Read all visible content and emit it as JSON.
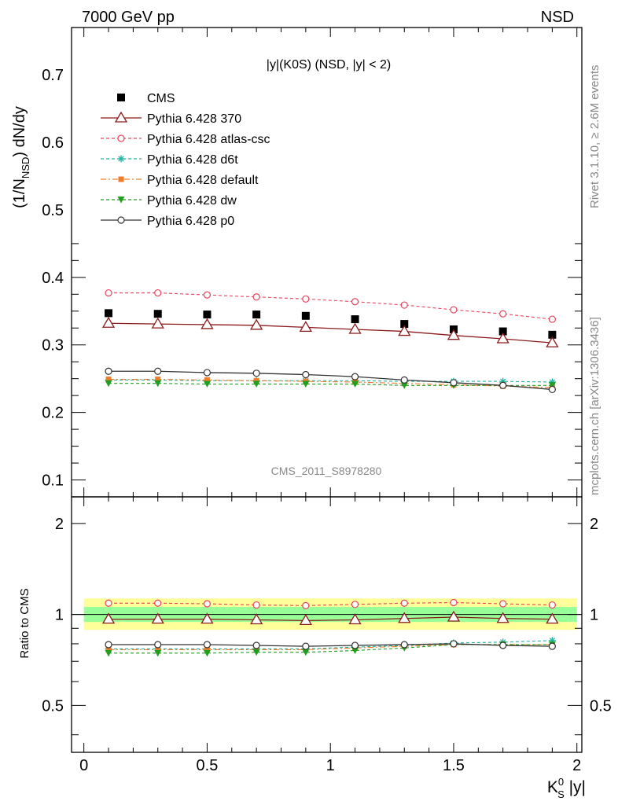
{
  "header": {
    "left": "7000 GeV pp",
    "right": "NSD"
  },
  "side_text": {
    "top": "Rivet 3.1.10, ≥ 2.6M events",
    "bottom": "mcplots.cern.ch [arXiv:1306.3436]"
  },
  "watermark": "CMS_2011_S8978280",
  "chart_data": [
    {
      "type": "scatter",
      "panel": "main",
      "title": "|y|(K0S) (NSD, |y| < 2)",
      "ylabel": "(1/N_NSD) dN/dy",
      "xlim": [
        -0.05,
        2.02
      ],
      "ylim": [
        0.075,
        0.77
      ],
      "yticks": [
        0.1,
        0.2,
        0.3,
        0.4,
        0.5,
        0.6,
        0.7
      ],
      "ytick_labels": [
        "0.1",
        "0.2",
        "0.3",
        "0.4",
        "0.5",
        "0.6",
        "0.7"
      ],
      "legend_placement": "top-left",
      "x": [
        0.1,
        0.3,
        0.5,
        0.7,
        0.9,
        1.1,
        1.3,
        1.5,
        1.7,
        1.9
      ],
      "series": [
        {
          "name": "CMS",
          "marker": "filled-square",
          "line": "none",
          "color": "#000000",
          "values": [
            0.347,
            0.346,
            0.345,
            0.345,
            0.343,
            0.338,
            0.331,
            0.323,
            0.32,
            0.315
          ]
        },
        {
          "name": "Pythia 6.428 370",
          "marker": "open-triangle",
          "line": "solid",
          "color": "#8b1a1a",
          "values": [
            0.332,
            0.331,
            0.33,
            0.329,
            0.326,
            0.323,
            0.32,
            0.314,
            0.309,
            0.303
          ]
        },
        {
          "name": "Pythia 6.428 atlas-csc",
          "marker": "open-circle",
          "line": "dashed",
          "color": "#e8435a",
          "values": [
            0.377,
            0.377,
            0.374,
            0.371,
            0.368,
            0.364,
            0.359,
            0.352,
            0.346,
            0.338
          ]
        },
        {
          "name": "Pythia 6.428 d6t",
          "marker": "asterisk",
          "line": "dashed",
          "color": "#20b2a0",
          "values": [
            0.248,
            0.248,
            0.247,
            0.247,
            0.247,
            0.247,
            0.246,
            0.246,
            0.246,
            0.245
          ]
        },
        {
          "name": "Pythia 6.428 default",
          "marker": "filled-square-small",
          "line": "dashdot",
          "color": "#f07d2a",
          "values": [
            0.249,
            0.249,
            0.248,
            0.247,
            0.246,
            0.245,
            0.243,
            0.241,
            0.239,
            0.237
          ]
        },
        {
          "name": "Pythia 6.428 dw",
          "marker": "filled-triangle-down",
          "line": "dashed",
          "color": "#1f9e1f",
          "values": [
            0.243,
            0.243,
            0.242,
            0.242,
            0.242,
            0.242,
            0.24,
            0.24,
            0.24,
            0.24
          ]
        },
        {
          "name": "Pythia 6.428 p0",
          "marker": "open-circle",
          "line": "solid",
          "color": "#333333",
          "values": [
            0.261,
            0.261,
            0.259,
            0.258,
            0.256,
            0.253,
            0.248,
            0.244,
            0.24,
            0.234
          ]
        }
      ]
    },
    {
      "type": "line",
      "panel": "ratio",
      "xlabel": "K_S^0 |y|",
      "ylabel": "Ratio to CMS",
      "xlim": [
        -0.05,
        2.02
      ],
      "ylim": [
        0.35,
        2.45
      ],
      "log_y": true,
      "xticks": [
        0,
        0.5,
        1,
        1.5,
        2
      ],
      "xtick_labels": [
        "0",
        "0.5",
        "1",
        "1.5",
        "2"
      ],
      "yticks": [
        0.5,
        1,
        2
      ],
      "ytick_labels": [
        "0.5",
        "1",
        "2"
      ],
      "bands": [
        {
          "color": "#ffff99",
          "lower": 0.89,
          "upper": 1.13,
          "x": [
            0.0,
            2.0
          ]
        },
        {
          "color": "#99ff99",
          "lower": 0.945,
          "upper": 1.06,
          "x": [
            0.0,
            2.0
          ]
        }
      ],
      "x": [
        0.1,
        0.3,
        0.5,
        0.7,
        0.9,
        1.1,
        1.3,
        1.5,
        1.7,
        1.9
      ],
      "series": [
        {
          "name": "Pythia 6.428 370",
          "marker": "open-triangle",
          "line": "solid",
          "color": "#8b1a1a",
          "values": [
            0.965,
            0.965,
            0.965,
            0.96,
            0.955,
            0.96,
            0.97,
            0.98,
            0.97,
            0.965
          ]
        },
        {
          "name": "Pythia 6.428 atlas-csc",
          "marker": "open-circle",
          "line": "dashed",
          "color": "#e8435a",
          "values": [
            1.09,
            1.09,
            1.085,
            1.075,
            1.07,
            1.08,
            1.09,
            1.095,
            1.085,
            1.075
          ]
        },
        {
          "name": "Pythia 6.428 d6t",
          "marker": "asterisk",
          "line": "dashed",
          "color": "#20b2a0",
          "values": [
            0.77,
            0.77,
            0.77,
            0.77,
            0.77,
            0.78,
            0.79,
            0.805,
            0.81,
            0.82
          ]
        },
        {
          "name": "Pythia 6.428 default",
          "marker": "filled-square-small",
          "line": "dashdot",
          "color": "#f07d2a",
          "values": [
            0.765,
            0.765,
            0.765,
            0.765,
            0.765,
            0.775,
            0.785,
            0.795,
            0.795,
            0.795
          ]
        },
        {
          "name": "Pythia 6.428 dw",
          "marker": "filled-triangle-down",
          "line": "dashed",
          "color": "#1f9e1f",
          "values": [
            0.745,
            0.745,
            0.745,
            0.75,
            0.75,
            0.76,
            0.775,
            0.795,
            0.795,
            0.795
          ]
        },
        {
          "name": "Pythia 6.428 p0",
          "marker": "open-circle",
          "line": "solid",
          "color": "#333333",
          "values": [
            0.795,
            0.795,
            0.795,
            0.79,
            0.785,
            0.79,
            0.795,
            0.8,
            0.79,
            0.785
          ]
        }
      ]
    }
  ]
}
